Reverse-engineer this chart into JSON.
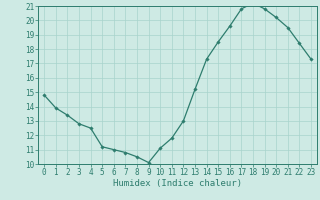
{
  "x": [
    0,
    1,
    2,
    3,
    4,
    5,
    6,
    7,
    8,
    9,
    10,
    11,
    12,
    13,
    14,
    15,
    16,
    17,
    18,
    19,
    20,
    21,
    22,
    23
  ],
  "y": [
    14.8,
    13.9,
    13.4,
    12.8,
    12.5,
    11.2,
    11.0,
    10.8,
    10.5,
    10.1,
    11.1,
    11.8,
    13.0,
    15.2,
    17.3,
    18.5,
    19.6,
    20.8,
    21.2,
    20.8,
    20.2,
    19.5,
    18.4,
    17.3
  ],
  "xlabel": "Humidex (Indice chaleur)",
  "xlim": [
    -0.5,
    23.5
  ],
  "ylim": [
    10,
    21
  ],
  "yticks": [
    10,
    11,
    12,
    13,
    14,
    15,
    16,
    17,
    18,
    19,
    20,
    21
  ],
  "xticks": [
    0,
    1,
    2,
    3,
    4,
    5,
    6,
    7,
    8,
    9,
    10,
    11,
    12,
    13,
    14,
    15,
    16,
    17,
    18,
    19,
    20,
    21,
    22,
    23
  ],
  "line_color": "#2e7d6e",
  "marker": "D",
  "marker_size": 1.8,
  "bg_color": "#ceeae4",
  "grid_color": "#a8d4cc",
  "tick_color": "#2e7d6e",
  "label_color": "#2e7d6e",
  "font_size_tick": 5.5,
  "font_size_xlabel": 6.5,
  "linewidth": 0.9
}
